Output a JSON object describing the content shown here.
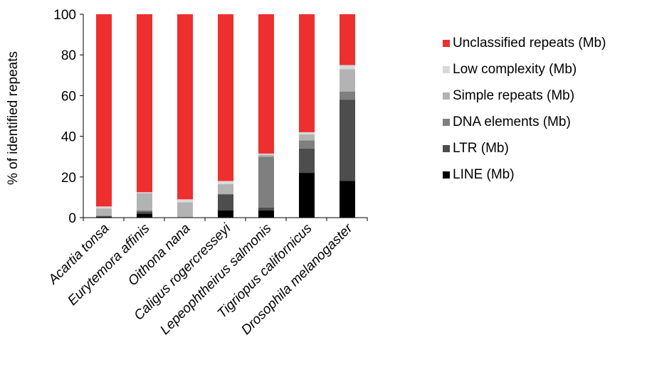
{
  "chart_data": {
    "type": "bar",
    "stacked": true,
    "title": "",
    "xlabel": "",
    "ylabel": "% of identified repeats",
    "ylim": [
      0,
      100
    ],
    "yticks": [
      0,
      20,
      40,
      60,
      80,
      100
    ],
    "grid": false,
    "legend_position": "right",
    "categories": [
      "Acartia tonsa",
      "Eurytemora affinis",
      "Oithona nana",
      "Caligus rogercresseyi",
      "Lepeophtheirus salmonis",
      "Tigriopus californicus",
      "Drosophila melanogaster"
    ],
    "series": [
      {
        "name": "LINE (Mb)",
        "color": "#000000",
        "values": [
          0.5,
          2,
          0,
          3.5,
          3.5,
          22,
          18
        ]
      },
      {
        "name": "LTR (Mb)",
        "color": "#4d4d4d",
        "values": [
          0,
          1,
          0,
          8,
          1.5,
          12,
          40
        ]
      },
      {
        "name": "DNA elements (Mb)",
        "color": "#7f7f7f",
        "values": [
          0.5,
          0.5,
          0,
          0,
          25,
          4,
          4
        ]
      },
      {
        "name": "Simple repeats  (Mb)",
        "color": "#b3b3b3",
        "values": [
          3.5,
          8.5,
          7.5,
          5,
          1,
          3,
          11
        ]
      },
      {
        "name": "Low complexity  (Mb)",
        "color": "#d9d9d9",
        "values": [
          1,
          0.5,
          1.5,
          1.5,
          0.5,
          1,
          2
        ]
      },
      {
        "name": "Unclassified repeats (Mb)",
        "color": "#ee2f2f",
        "values": [
          94.5,
          87.5,
          91,
          82,
          68.5,
          58,
          25
        ]
      }
    ]
  }
}
